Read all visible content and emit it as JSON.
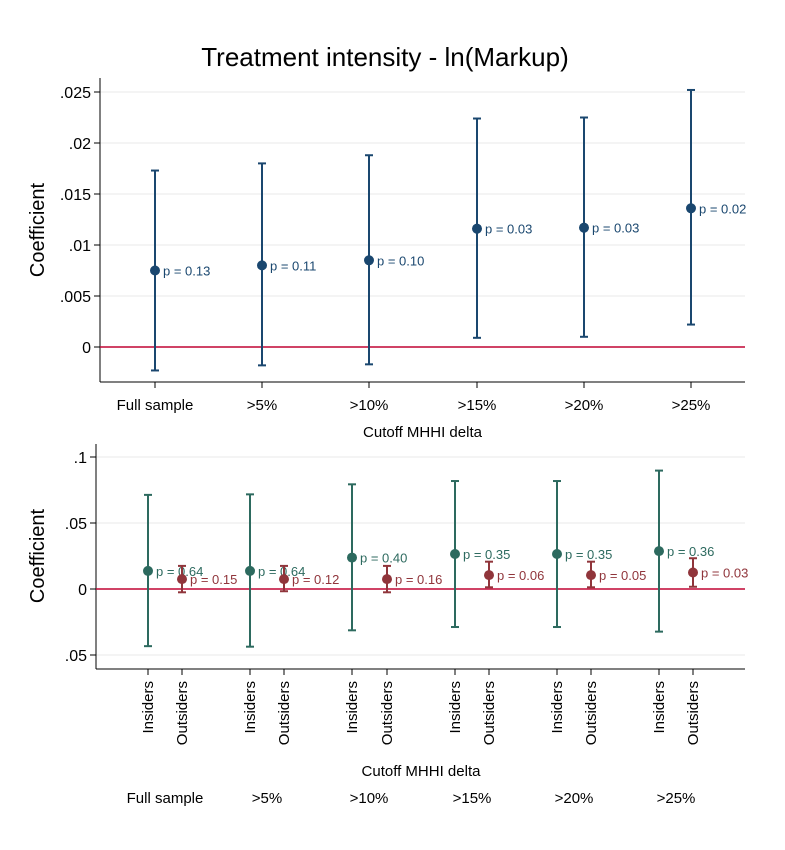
{
  "title": "Treatment intensity - ln(Markup)",
  "colors": {
    "navy": "#1a476f",
    "teal": "#2d6a5f",
    "maroon": "#90353b",
    "zero_line": "#c10534",
    "grid": "#e8e8e8",
    "axis": "#000000"
  },
  "chart_data": [
    {
      "type": "scatter",
      "subtype": "coefficient-plot-with-error-bars",
      "title": "Treatment intensity - ln(Markup)",
      "xlabel": "Cutoff MHHI delta",
      "ylabel": "Coefficient",
      "categories": [
        "Full sample",
        ">5%",
        ">10%",
        ">15%",
        ">20%",
        ">25%"
      ],
      "ylim": [
        -0.003,
        0.027
      ],
      "yticks": [
        0,
        0.005,
        0.01,
        0.015,
        0.02,
        0.025
      ],
      "ytick_labels": [
        "0",
        ".005",
        ".01",
        ".015",
        ".02",
        ".025"
      ],
      "reference_line": 0,
      "grid": true,
      "series": [
        {
          "color": "#1a476f",
          "values": [
            0.0075,
            0.008,
            0.0085,
            0.0116,
            0.0117,
            0.0136
          ],
          "ci_low": [
            -0.0023,
            -0.0018,
            -0.0017,
            0.0009,
            0.001,
            0.0022
          ],
          "ci_high": [
            0.0173,
            0.018,
            0.0188,
            0.0224,
            0.0225,
            0.0252
          ],
          "labels": [
            "p = 0.13",
            "p = 0.11",
            "p = 0.10",
            "p = 0.03",
            "p = 0.03",
            "p = 0.02"
          ]
        }
      ]
    },
    {
      "type": "scatter",
      "subtype": "coefficient-plot-with-error-bars",
      "xlabel": "Cutoff MHHI delta",
      "ylabel": "Coefficient",
      "categories": [
        "Full sample",
        ">5%",
        ">10%",
        ">15%",
        ">20%",
        ">25%"
      ],
      "subcategories": [
        "Insiders",
        "Outsiders"
      ],
      "ylim": [
        -0.058,
        0.108
      ],
      "yticks": [
        -0.05,
        0,
        0.05,
        0.1
      ],
      "ytick_labels": [
        ".05",
        "0",
        ".05",
        ".1"
      ],
      "reference_line": 0,
      "grid": true,
      "series": [
        {
          "name": "Insiders",
          "color": "#2d6a5f",
          "values": [
            0.0137,
            0.0137,
            0.0238,
            0.0265,
            0.0265,
            0.0287
          ],
          "ci_low": [
            -0.0433,
            -0.0437,
            -0.0313,
            -0.0288,
            -0.0288,
            -0.0323
          ],
          "ci_high": [
            0.0713,
            0.0717,
            0.0793,
            0.0818,
            0.0818,
            0.0897
          ],
          "labels": [
            "p = 0.64",
            "p = 0.64",
            "p = 0.40",
            "p = 0.35",
            "p = 0.35",
            "p = 0.36"
          ]
        },
        {
          "name": "Outsiders",
          "color": "#90353b",
          "values": [
            0.0075,
            0.0075,
            0.0075,
            0.0105,
            0.0105,
            0.0125
          ],
          "ci_low": [
            -0.0025,
            -0.0017,
            -0.0025,
            0.0013,
            0.0013,
            0.0017
          ],
          "ci_high": [
            0.0175,
            0.0175,
            0.0175,
            0.0207,
            0.0207,
            0.0233
          ],
          "labels": [
            "p = 0.15",
            "p = 0.12",
            "p = 0.16",
            "p = 0.06",
            "p = 0.05",
            "p = 0.03"
          ]
        }
      ]
    }
  ]
}
